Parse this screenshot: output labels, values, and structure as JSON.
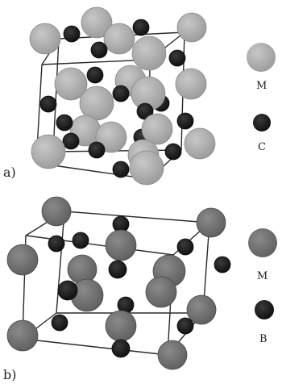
{
  "panels": [
    {
      "label": "a)",
      "legend": [
        {
          "text": "M",
          "kind": "big"
        },
        {
          "text": "C",
          "kind": "small"
        }
      ]
    },
    {
      "label": "b)",
      "legend": [
        {
          "text": "M",
          "kind": "big"
        },
        {
          "text": "B",
          "kind": "small"
        }
      ]
    }
  ],
  "colors": {
    "panel_a_big_atom": "#a6a6a6",
    "panel_b_big_atom": "#6b6b6b",
    "small_atom": "#151515",
    "bond": "#2a2a2a"
  }
}
